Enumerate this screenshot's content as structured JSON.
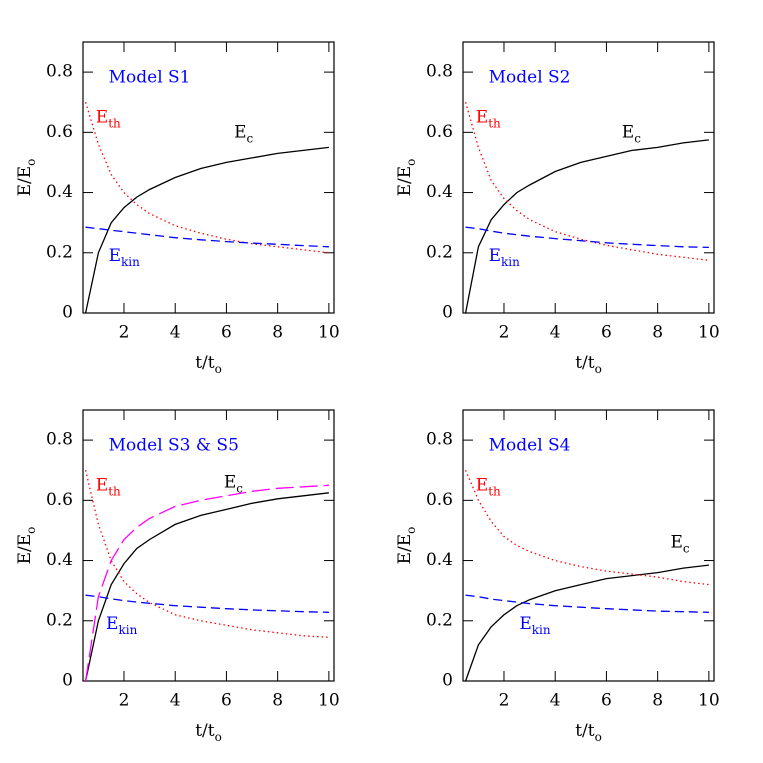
{
  "chart_data": [
    {
      "type": "line",
      "title": "Model S1",
      "title_color": "#0000ff",
      "xlabel": {
        "text": "t/t",
        "sub": "o"
      },
      "ylabel": {
        "text": "E/E",
        "sub": "o"
      },
      "xlim": [
        0.4,
        10.2
      ],
      "ylim": [
        0,
        0.9
      ],
      "xticks": [
        2,
        4,
        6,
        8,
        10
      ],
      "yticks": [
        0,
        0.2,
        0.4,
        0.6,
        0.8
      ],
      "x": [
        0.5,
        1,
        1.5,
        2,
        2.5,
        3,
        4,
        5,
        6,
        7,
        8,
        9,
        10
      ],
      "series": [
        {
          "name": "E",
          "subscript": "c",
          "color": "#000000",
          "dash": "solid",
          "values": [
            0,
            0.2,
            0.3,
            0.35,
            0.385,
            0.41,
            0.45,
            0.48,
            0.5,
            0.515,
            0.53,
            0.54,
            0.55
          ]
        },
        {
          "name": "E",
          "subscript": "th",
          "color": "#ff0000",
          "dash": "dotted",
          "values": [
            0.7,
            0.56,
            0.46,
            0.4,
            0.36,
            0.33,
            0.29,
            0.265,
            0.245,
            0.23,
            0.22,
            0.21,
            0.2
          ]
        },
        {
          "name": "E",
          "subscript": "kin",
          "color": "#0000ff",
          "dash": "dashed",
          "values": [
            0.285,
            0.28,
            0.275,
            0.27,
            0.265,
            0.26,
            0.25,
            0.243,
            0.237,
            0.232,
            0.228,
            0.224,
            0.22
          ]
        }
      ]
    },
    {
      "type": "line",
      "title": "Model S2",
      "title_color": "#0000ff",
      "xlabel": {
        "text": "t/t",
        "sub": "o"
      },
      "ylabel": {
        "text": "E/E",
        "sub": "o"
      },
      "xlim": [
        0.4,
        10.2
      ],
      "ylim": [
        0,
        0.9
      ],
      "xticks": [
        2,
        4,
        6,
        8,
        10
      ],
      "yticks": [
        0,
        0.2,
        0.4,
        0.6,
        0.8
      ],
      "x": [
        0.5,
        1,
        1.5,
        2,
        2.5,
        3,
        4,
        5,
        6,
        7,
        8,
        9,
        10
      ],
      "series": [
        {
          "name": "E",
          "subscript": "c",
          "color": "#000000",
          "dash": "solid",
          "values": [
            0,
            0.22,
            0.31,
            0.36,
            0.4,
            0.425,
            0.47,
            0.5,
            0.52,
            0.54,
            0.55,
            0.565,
            0.575
          ]
        },
        {
          "name": "E",
          "subscript": "th",
          "color": "#ff0000",
          "dash": "dotted",
          "values": [
            0.7,
            0.55,
            0.44,
            0.38,
            0.34,
            0.31,
            0.27,
            0.245,
            0.225,
            0.21,
            0.195,
            0.185,
            0.175
          ]
        },
        {
          "name": "E",
          "subscript": "kin",
          "color": "#0000ff",
          "dash": "dashed",
          "values": [
            0.285,
            0.28,
            0.272,
            0.265,
            0.26,
            0.255,
            0.247,
            0.24,
            0.233,
            0.228,
            0.224,
            0.22,
            0.218
          ]
        }
      ]
    },
    {
      "type": "line",
      "title": "Model S3 & S5",
      "title_color": "#0000ff",
      "xlabel": {
        "text": "t/t",
        "sub": "o"
      },
      "ylabel": {
        "text": "E/E",
        "sub": "o"
      },
      "xlim": [
        0.4,
        10.2
      ],
      "ylim": [
        0,
        0.9
      ],
      "xticks": [
        2,
        4,
        6,
        8,
        10
      ],
      "yticks": [
        0,
        0.2,
        0.4,
        0.6,
        0.8
      ],
      "x": [
        0.5,
        1,
        1.5,
        2,
        2.5,
        3,
        4,
        5,
        6,
        7,
        8,
        9,
        10
      ],
      "series": [
        {
          "name": "E",
          "subscript": "c",
          "color": "#000000",
          "dash": "solid",
          "values": [
            0,
            0.2,
            0.32,
            0.39,
            0.44,
            0.47,
            0.52,
            0.55,
            0.57,
            0.59,
            0.605,
            0.615,
            0.625
          ]
        },
        {
          "color": "#ff00ff",
          "dash": "longdash",
          "values": [
            0,
            0.28,
            0.4,
            0.47,
            0.51,
            0.54,
            0.58,
            0.6,
            0.615,
            0.63,
            0.64,
            0.645,
            0.65
          ]
        },
        {
          "name": "E",
          "subscript": "th",
          "color": "#ff0000",
          "dash": "dotted",
          "values": [
            0.7,
            0.52,
            0.4,
            0.33,
            0.29,
            0.26,
            0.22,
            0.2,
            0.185,
            0.17,
            0.16,
            0.15,
            0.145
          ]
        },
        {
          "name": "E",
          "subscript": "kin",
          "color": "#0000ff",
          "dash": "dashed",
          "values": [
            0.285,
            0.28,
            0.273,
            0.267,
            0.262,
            0.258,
            0.25,
            0.245,
            0.24,
            0.236,
            0.233,
            0.23,
            0.228
          ]
        }
      ]
    },
    {
      "type": "line",
      "title": "Model S4",
      "title_color": "#0000ff",
      "xlabel": {
        "text": "t/t",
        "sub": "o"
      },
      "ylabel": {
        "text": "E/E",
        "sub": "o"
      },
      "xlim": [
        0.4,
        10.2
      ],
      "ylim": [
        0,
        0.9
      ],
      "xticks": [
        2,
        4,
        6,
        8,
        10
      ],
      "yticks": [
        0,
        0.2,
        0.4,
        0.6,
        0.8
      ],
      "x": [
        0.5,
        1,
        1.5,
        2,
        2.5,
        3,
        4,
        5,
        6,
        7,
        8,
        9,
        10
      ],
      "series": [
        {
          "name": "E",
          "subscript": "c",
          "color": "#000000",
          "dash": "solid",
          "values": [
            0,
            0.12,
            0.18,
            0.22,
            0.25,
            0.27,
            0.3,
            0.32,
            0.34,
            0.35,
            0.36,
            0.375,
            0.385
          ]
        },
        {
          "name": "E",
          "subscript": "th",
          "color": "#ff0000",
          "dash": "dotted",
          "values": [
            0.7,
            0.6,
            0.53,
            0.48,
            0.45,
            0.43,
            0.4,
            0.38,
            0.365,
            0.355,
            0.345,
            0.33,
            0.32
          ]
        },
        {
          "name": "E",
          "subscript": "kin",
          "color": "#0000ff",
          "dash": "dashed",
          "values": [
            0.285,
            0.28,
            0.272,
            0.267,
            0.262,
            0.257,
            0.25,
            0.245,
            0.24,
            0.236,
            0.232,
            0.23,
            0.228
          ]
        }
      ]
    }
  ]
}
